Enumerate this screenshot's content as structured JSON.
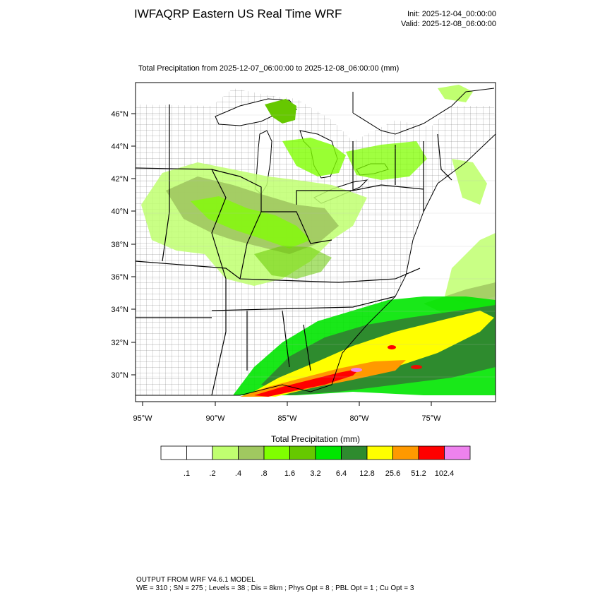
{
  "header": {
    "title": "IWFAQRP Eastern US Real Time WRF",
    "init": "Init: 2025-12-04_00:00:00",
    "valid": "Valid: 2025-12-08_06:00:00"
  },
  "subtitle": "Total Precipitation from 2025-12-07_06:00:00 to 2025-12-08_06:00:00   (mm)",
  "map": {
    "lat_labels": [
      "46°N",
      "44°N",
      "42°N",
      "40°N",
      "38°N",
      "36°N",
      "34°N",
      "32°N",
      "30°N"
    ],
    "lon_labels": [
      "95°W",
      "90°W",
      "85°W",
      "80°W",
      "75°W"
    ]
  },
  "legend": {
    "title": "Total Precipitation  (mm)",
    "labels": [
      ".1",
      ".2",
      ".4",
      ".8",
      "1.6",
      "3.2",
      "6.4",
      "12.8",
      "25.6",
      "51.2",
      "102.4"
    ],
    "colors": [
      "#ffffff",
      "#ffffff",
      "#c0ff70",
      "#a0c860",
      "#80ff00",
      "#66c800",
      "#00e600",
      "#2e8b2e",
      "#ffff00",
      "#ff9900",
      "#ff0000",
      "#ee82ee"
    ]
  },
  "footer": {
    "line1": "OUTPUT FROM WRF V4.6.1 MODEL",
    "line2": "WE = 310 ; SN = 275 ; Levels = 38 ; Dis = 8km ; Phys Opt = 8 ; PBL Opt = 1 ; Cu Opt = 3"
  }
}
